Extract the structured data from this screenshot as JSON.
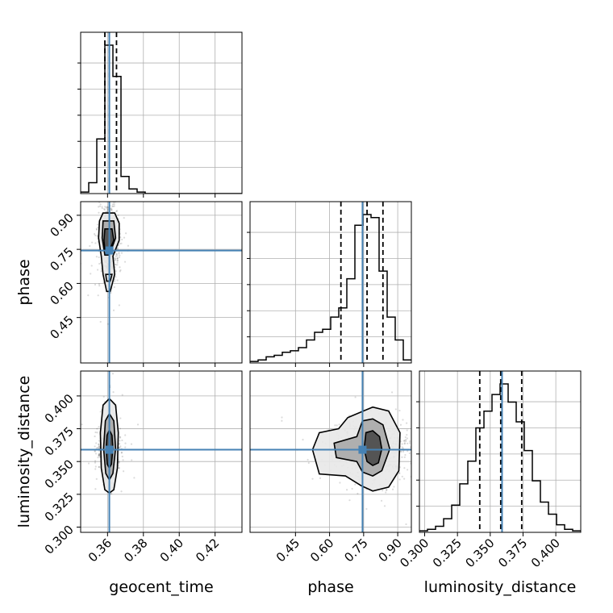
{
  "chart_data": {
    "type": "corner",
    "parameters": [
      "geocent_time",
      "phase",
      "luminosity_distance"
    ],
    "labels": [
      "geocent_time",
      "phase",
      "luminosity_distance"
    ],
    "truths": [
      0.361,
      0.745,
      0.359
    ],
    "accent_color": "#4682b4",
    "grid": true,
    "ranges": [
      [
        0.345,
        0.435
      ],
      [
        0.25,
        0.96
      ],
      [
        0.296,
        0.419
      ]
    ],
    "ticks": [
      {
        "values": [
          0.36,
          0.38,
          0.4,
          0.42
        ],
        "labels": [
          "0.36",
          "0.38",
          "0.40",
          "0.42"
        ]
      },
      {
        "values": [
          0.45,
          0.6,
          0.75,
          0.9
        ],
        "labels": [
          "0.45",
          "0.60",
          "0.75",
          "0.90"
        ]
      },
      {
        "values": [
          0.3,
          0.325,
          0.35,
          0.375,
          0.4
        ],
        "labels": [
          "0.300",
          "0.325",
          "0.350",
          "0.375",
          "0.400"
        ]
      }
    ],
    "histograms": [
      {
        "parameter": "geocent_time",
        "bin_edges": [
          0.345,
          0.3495,
          0.354,
          0.3585,
          0.363,
          0.3675,
          0.372,
          0.3765,
          0.381,
          0.3855,
          0.39,
          0.3945,
          0.399,
          0.4035,
          0.408,
          0.4125,
          0.417,
          0.4215,
          0.426,
          0.4305,
          0.435
        ],
        "counts": [
          0.01,
          0.07,
          0.35,
          0.95,
          0.75,
          0.11,
          0.03,
          0.01,
          0.0,
          0.0,
          0.0,
          0.0,
          0.0,
          0.0,
          0.0,
          0.0,
          0.0,
          0.0,
          0.0,
          0.0
        ],
        "quantiles": [
          0.3585,
          0.361,
          0.365
        ]
      },
      {
        "parameter": "phase",
        "bin_edges": [
          0.25,
          0.2855,
          0.321,
          0.3565,
          0.392,
          0.4275,
          0.463,
          0.4985,
          0.534,
          0.5695,
          0.605,
          0.6405,
          0.676,
          0.7115,
          0.747,
          0.7825,
          0.818,
          0.8535,
          0.889,
          0.9245,
          0.96
        ],
        "counts": [
          0.01,
          0.02,
          0.04,
          0.05,
          0.07,
          0.08,
          0.1,
          0.15,
          0.2,
          0.22,
          0.3,
          0.36,
          0.55,
          0.9,
          0.97,
          0.95,
          0.6,
          0.3,
          0.15,
          0.02
        ],
        "quantiles": [
          0.65,
          0.765,
          0.835
        ]
      },
      {
        "parameter": "luminosity_distance",
        "bin_edges": [
          0.296,
          0.30215,
          0.3083,
          0.31445,
          0.3206,
          0.32675,
          0.3329,
          0.33905,
          0.3452,
          0.35135,
          0.3575,
          0.36365,
          0.3698,
          0.37595,
          0.3821,
          0.38825,
          0.3944,
          0.40055,
          0.4067,
          0.41285,
          0.419
        ],
        "counts": [
          0.01,
          0.02,
          0.04,
          0.09,
          0.18,
          0.32,
          0.47,
          0.69,
          0.8,
          0.91,
          0.98,
          0.86,
          0.73,
          0.54,
          0.34,
          0.2,
          0.12,
          0.05,
          0.02,
          0.01
        ],
        "quantiles": [
          0.342,
          0.358,
          0.374
        ]
      }
    ],
    "pairs": [
      {
        "x": "geocent_time",
        "y": "phase",
        "center": [
          0.361,
          0.785
        ],
        "contours": [
          [
            [
              0.3575,
              0.91
            ],
            [
              0.364,
              0.91
            ],
            [
              0.3665,
              0.865
            ],
            [
              0.3665,
              0.79
            ],
            [
              0.363,
              0.72
            ],
            [
              0.364,
              0.64
            ],
            [
              0.3615,
              0.565
            ],
            [
              0.3595,
              0.565
            ],
            [
              0.3575,
              0.64
            ],
            [
              0.3565,
              0.72
            ],
            [
              0.355,
              0.8
            ],
            [
              0.3555,
              0.875
            ]
          ],
          [
            [
              0.3575,
              0.875
            ],
            [
              0.3635,
              0.875
            ],
            [
              0.3645,
              0.8
            ],
            [
              0.361,
              0.725
            ],
            [
              0.3585,
              0.725
            ],
            [
              0.357,
              0.8
            ]
          ],
          [
            [
              0.3585,
              0.84
            ],
            [
              0.3625,
              0.84
            ],
            [
              0.3635,
              0.79
            ],
            [
              0.361,
              0.745
            ],
            [
              0.3585,
              0.745
            ],
            [
              0.358,
              0.79
            ]
          ],
          [
            [
              0.359,
              0.64
            ],
            [
              0.3625,
              0.64
            ],
            [
              0.3615,
              0.61
            ],
            [
              0.3595,
              0.61
            ]
          ]
        ]
      },
      {
        "x": "geocent_time",
        "y": "luminosity_distance",
        "center": [
          0.361,
          0.3595
        ],
        "contours": [
          [
            [
              0.361,
              0.398
            ],
            [
              0.3645,
              0.393
            ],
            [
              0.366,
              0.372
            ],
            [
              0.3655,
              0.345
            ],
            [
              0.3635,
              0.3285
            ],
            [
              0.361,
              0.326
            ],
            [
              0.3585,
              0.3285
            ],
            [
              0.3565,
              0.345
            ],
            [
              0.356,
              0.372
            ],
            [
              0.3575,
              0.393
            ]
          ],
          [
            [
              0.361,
              0.3865
            ],
            [
              0.3635,
              0.381
            ],
            [
              0.3645,
              0.36
            ],
            [
              0.363,
              0.341
            ],
            [
              0.361,
              0.336
            ],
            [
              0.359,
              0.341
            ],
            [
              0.3578,
              0.36
            ],
            [
              0.3588,
              0.381
            ]
          ],
          [
            [
              0.361,
              0.374
            ],
            [
              0.3625,
              0.37
            ],
            [
              0.363,
              0.36
            ],
            [
              0.3622,
              0.348
            ],
            [
              0.361,
              0.345
            ],
            [
              0.3598,
              0.348
            ],
            [
              0.3592,
              0.36
            ],
            [
              0.3597,
              0.37
            ]
          ]
        ]
      },
      {
        "x": "phase",
        "y": "luminosity_distance",
        "center": [
          0.79,
          0.3595
        ],
        "contours": [
          [
            [
              0.68,
              0.3835
            ],
            [
              0.79,
              0.3915
            ],
            [
              0.86,
              0.3885
            ],
            [
              0.91,
              0.372
            ],
            [
              0.905,
              0.343
            ],
            [
              0.86,
              0.3305
            ],
            [
              0.79,
              0.3275
            ],
            [
              0.74,
              0.3315
            ],
            [
              0.67,
              0.339
            ],
            [
              0.555,
              0.3405
            ],
            [
              0.525,
              0.359
            ],
            [
              0.555,
              0.372
            ],
            [
              0.64,
              0.375
            ]
          ],
          [
            [
              0.745,
              0.381
            ],
            [
              0.79,
              0.3825
            ],
            [
              0.835,
              0.378
            ],
            [
              0.865,
              0.3595
            ],
            [
              0.83,
              0.343
            ],
            [
              0.79,
              0.339
            ],
            [
              0.745,
              0.342
            ],
            [
              0.72,
              0.35
            ],
            [
              0.63,
              0.353
            ],
            [
              0.62,
              0.364
            ],
            [
              0.72,
              0.369
            ]
          ],
          [
            [
              0.76,
              0.372
            ],
            [
              0.79,
              0.3735
            ],
            [
              0.82,
              0.369
            ],
            [
              0.83,
              0.3595
            ],
            [
              0.815,
              0.349
            ],
            [
              0.79,
              0.347
            ],
            [
              0.765,
              0.35
            ],
            [
              0.752,
              0.3595
            ]
          ]
        ]
      }
    ]
  }
}
